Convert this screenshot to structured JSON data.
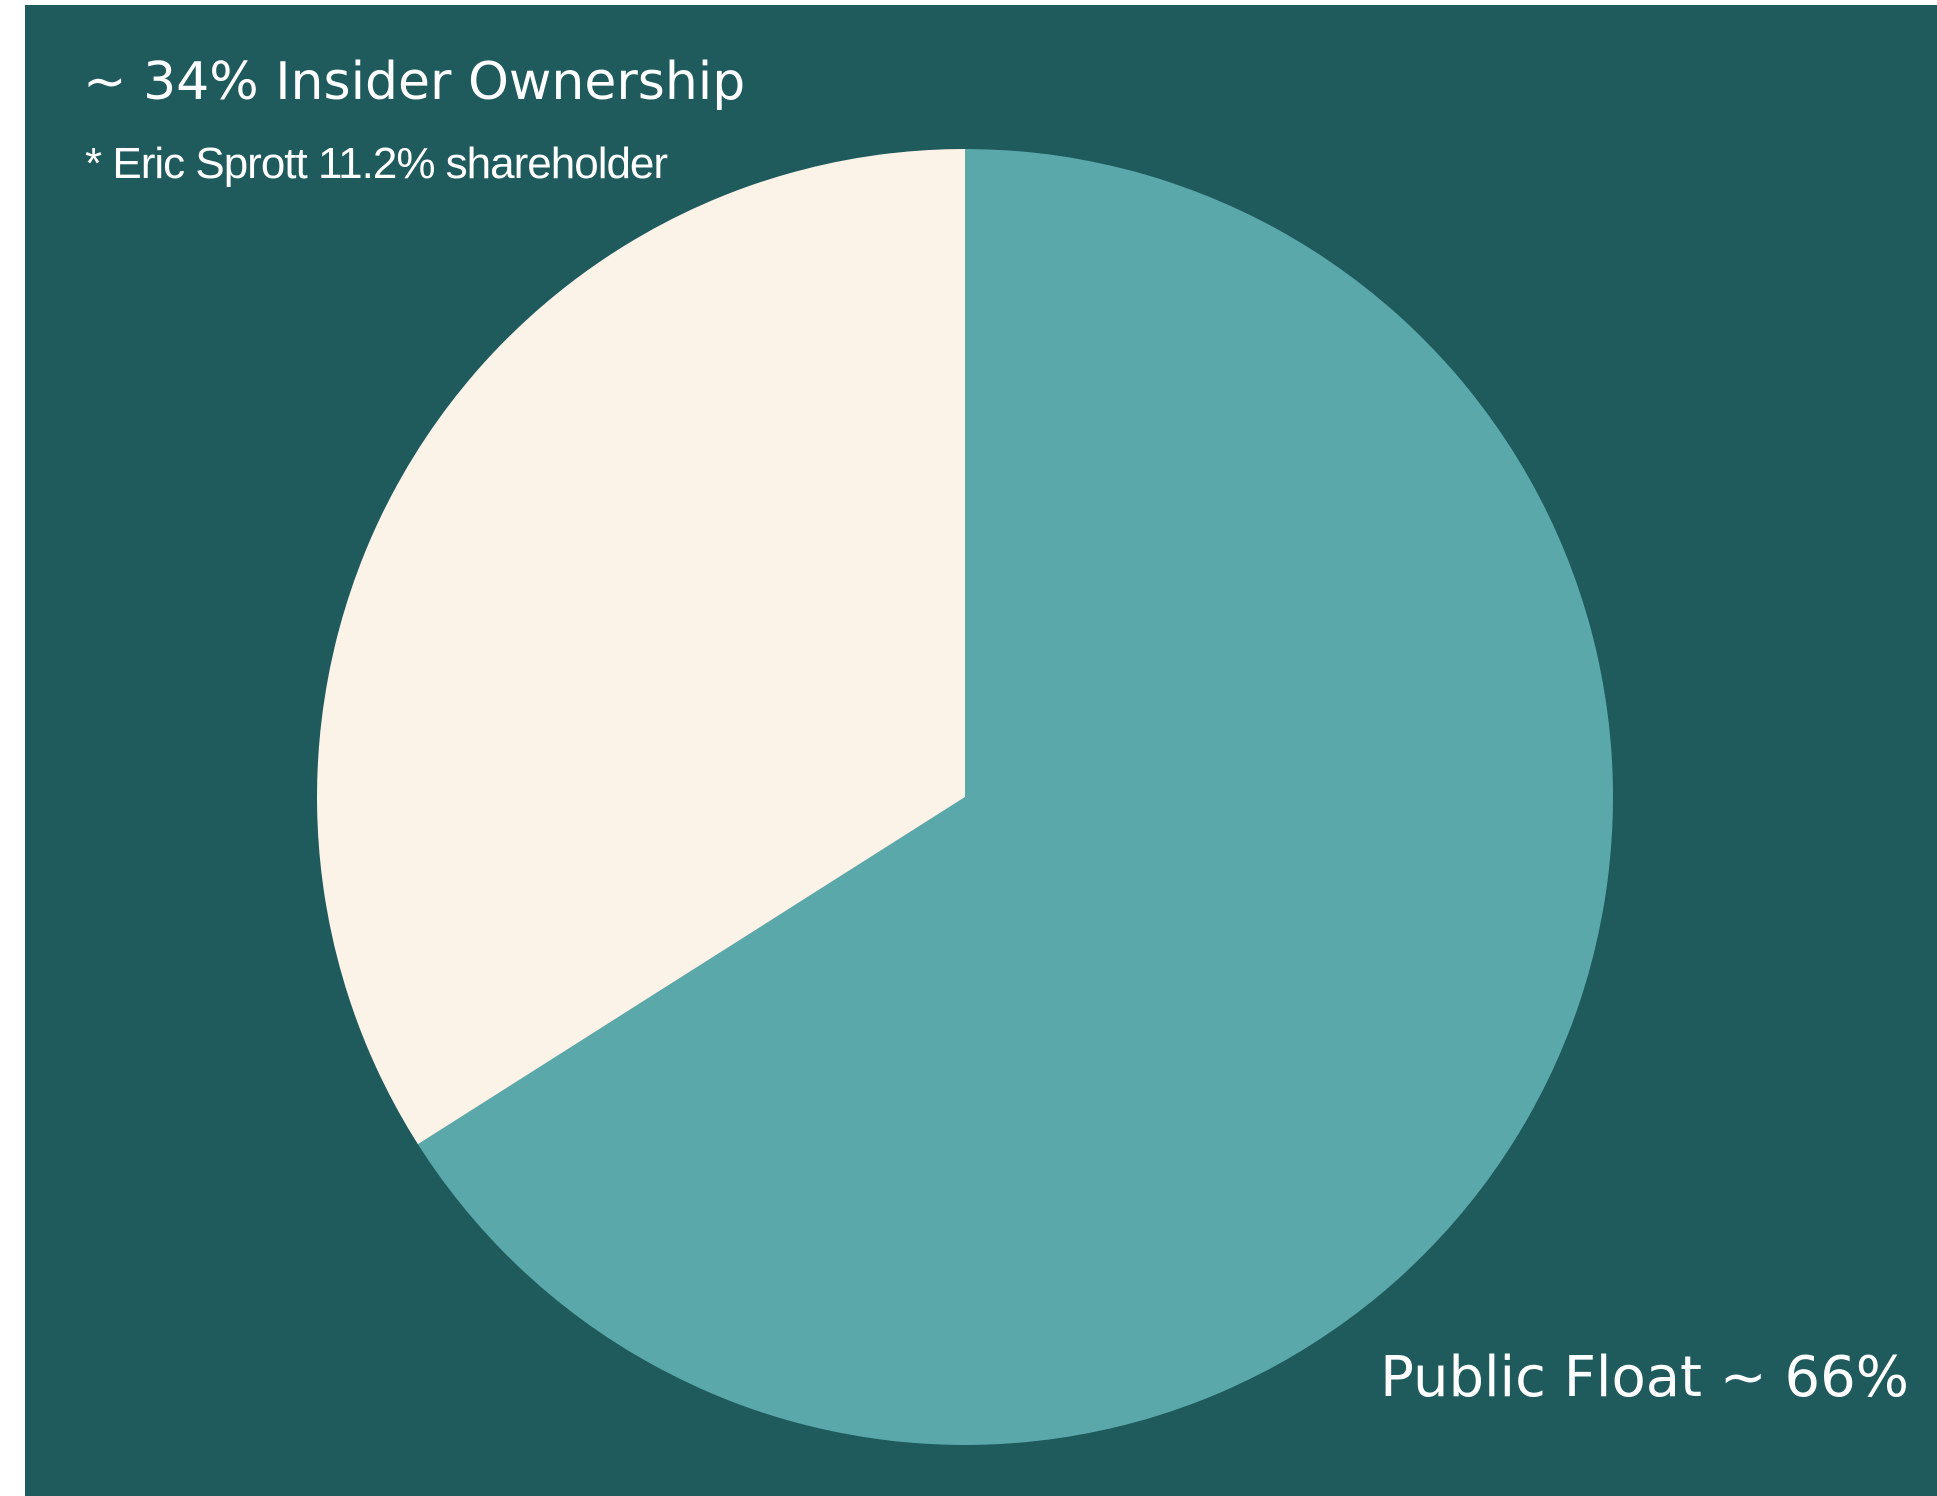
{
  "colors": {
    "background": "#1f5a5d",
    "insider": "#fbf2e8",
    "public_float": "#5aa8aa",
    "text": "#ffffff"
  },
  "chart_data": {
    "type": "pie",
    "categories": [
      "Insider Ownership",
      "Public Float"
    ],
    "values": [
      34,
      66
    ],
    "start": "12 o'clock",
    "direction": "counterclockwise from insider slice",
    "annotations": {
      "insider": "~ 34% Insider Ownership",
      "insider_note": "* Eric Sprott 11.2% shareholder",
      "public_float": "Public Float ~ 66%"
    }
  }
}
